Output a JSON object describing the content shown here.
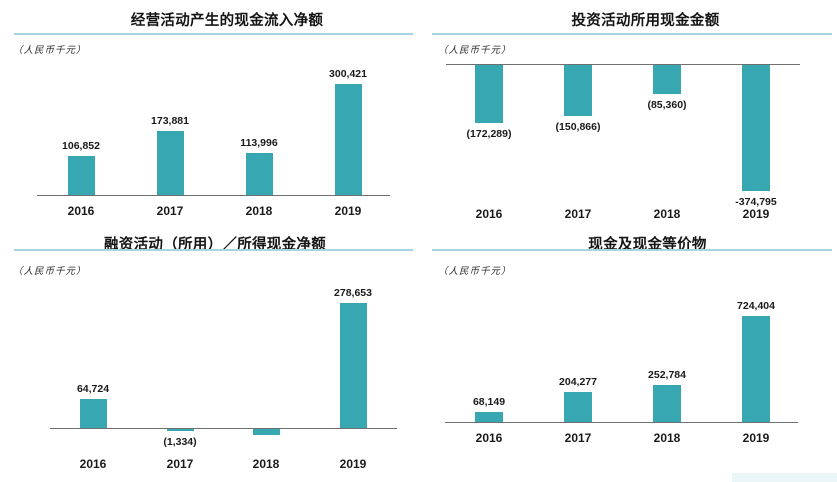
{
  "colors": {
    "bar": "#37a7b2",
    "underline": "#a5d5e0",
    "axis": "#707070",
    "text": "#1a1a1a"
  },
  "chart_data": [
    {
      "type": "bar",
      "title": "经营活动产生的现金流入净额",
      "unit_label": "（人民币千元）",
      "categories": [
        "2016",
        "2017",
        "2018",
        "2019"
      ],
      "values": [
        106852,
        173881,
        113996,
        300421
      ],
      "data_labels": [
        "106,852",
        "173,881",
        "113,996",
        "300,421"
      ],
      "xlabel": "",
      "ylabel": "人民币千元",
      "ylim": [
        0,
        330000
      ],
      "grid": false,
      "legend": false
    },
    {
      "type": "bar",
      "title": "投资活动所用现金金额",
      "unit_label": "（人民币千元）",
      "categories": [
        "2016",
        "2017",
        "2018",
        "2019"
      ],
      "values": [
        -172289,
        -150866,
        -85360,
        -374795
      ],
      "data_labels": [
        "(172,289)",
        "(150,866)",
        "(85,360)",
        "-374,795"
      ],
      "xlabel": "",
      "ylabel": "人民币千元",
      "ylim": [
        -400000,
        0
      ],
      "grid": false,
      "legend": false
    },
    {
      "type": "bar",
      "title": "融资活动（所用）／所得现金净额",
      "unit_label": "（人民币千元）",
      "categories": [
        "2016",
        "2017",
        "2018",
        "2019"
      ],
      "values": [
        64724,
        -1334,
        -13000,
        278653
      ],
      "data_labels": [
        "64,724",
        "(1,334)",
        "",
        "278,653"
      ],
      "xlabel": "",
      "ylabel": "人民币千元",
      "ylim": [
        -30000,
        310000
      ],
      "grid": false,
      "legend": false
    },
    {
      "type": "bar",
      "title": "现金及现金等价物",
      "unit_label": "（人民币千元）",
      "categories": [
        "2016",
        "2017",
        "2018",
        "2019"
      ],
      "values": [
        68149,
        204277,
        252784,
        724404
      ],
      "data_labels": [
        "68,149",
        "204,277",
        "252,784",
        "724,404"
      ],
      "xlabel": "",
      "ylabel": "人民币千元",
      "ylim": [
        0,
        780000
      ],
      "grid": false,
      "legend": false
    }
  ]
}
